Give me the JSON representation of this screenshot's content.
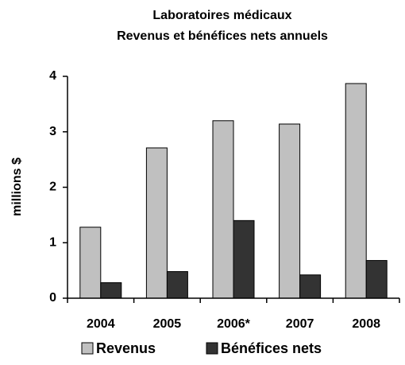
{
  "chart_data": {
    "type": "bar",
    "title": "Laboratoires médicaux",
    "subtitle": "Revenus et bénéfices nets annuels",
    "y_label": "millions $",
    "categories": [
      "2004",
      "2005",
      "2006*",
      "2007",
      "2008"
    ],
    "series": [
      {
        "name": "Revenus",
        "color": "#c0c0c0",
        "values": [
          1.28,
          2.71,
          3.2,
          3.14,
          3.87
        ]
      },
      {
        "name": "Bénéfices nets",
        "color": "#333333",
        "values": [
          0.28,
          0.48,
          1.4,
          0.42,
          0.68
        ]
      }
    ],
    "ylim": [
      0,
      4
    ],
    "yticks": [
      0,
      1,
      2,
      3,
      4
    ],
    "grid": false,
    "legend": "bottom"
  }
}
